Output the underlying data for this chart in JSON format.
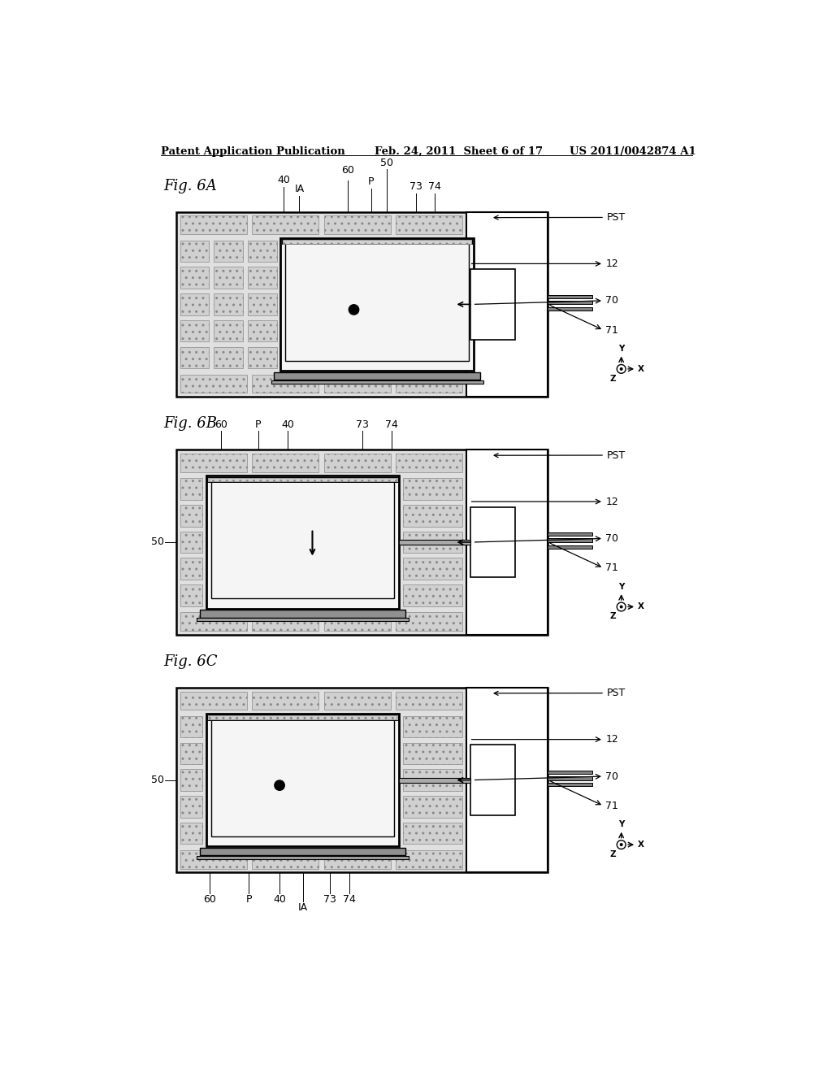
{
  "header_left": "Patent Application Publication",
  "header_center": "Feb. 24, 2011  Sheet 6 of 17",
  "header_right": "US 2011/0042874 A1",
  "background": "#ffffff",
  "lc": "#000000",
  "hatch_fill": "#d0d0d0",
  "hatch_color": "#888888",
  "panel_lw": 1.8,
  "fig6A": {
    "label": "Fig. 6A",
    "stage_pos": "right",
    "has_dot": true,
    "has_arrow": false,
    "labels_top": true,
    "nums": [
      "40",
      "IA",
      "60",
      "P",
      "50",
      "73",
      "74"
    ],
    "nums_bottom": false
  },
  "fig6B": {
    "label": "Fig. 6B",
    "stage_pos": "center",
    "has_dot": false,
    "has_arrow": true,
    "labels_top": true,
    "nums": [
      "60",
      "P",
      "40",
      "73",
      "74"
    ],
    "nums_bottom": false
  },
  "fig6C": {
    "label": "Fig. 6C",
    "stage_pos": "left",
    "has_dot": true,
    "has_arrow": false,
    "labels_top": false,
    "nums": [
      "60",
      "P",
      "40",
      "IA",
      "73",
      "74"
    ],
    "nums_bottom": true
  }
}
